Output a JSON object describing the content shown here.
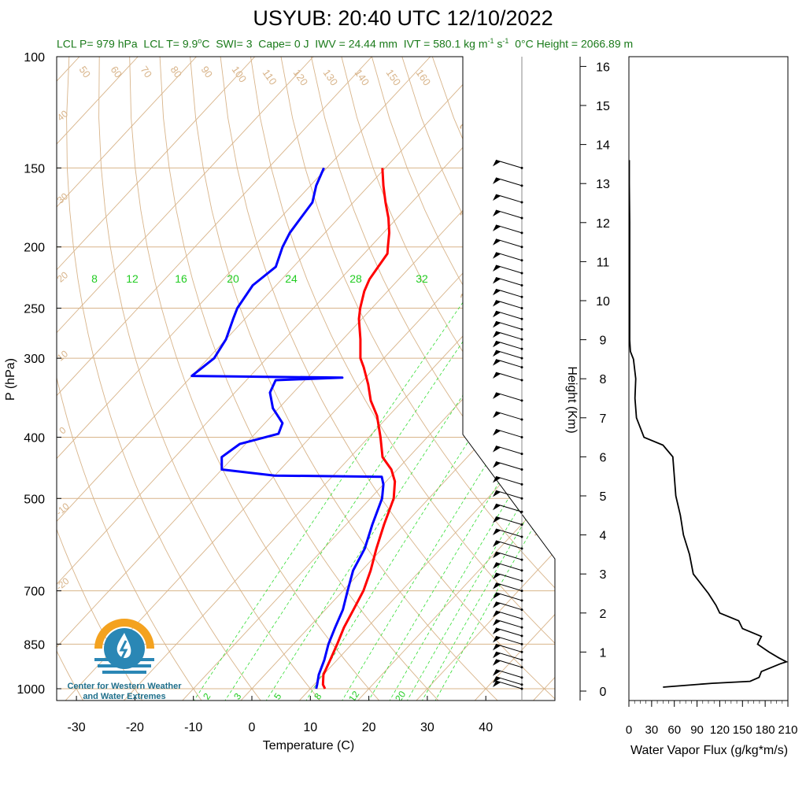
{
  "title": "USYUB: 20:40 UTC 12/10/2022",
  "stats": {
    "lcl_p": "LCL P= 979 hPa",
    "lcl_t": "LCL T= 9.9",
    "lcl_t_unit": "C",
    "swi": "SWI= 3",
    "cape": "Cape= 0 J",
    "iwv": "IWV = 24.44 mm",
    "ivt": "IVT = 580.1 kg m",
    "ivt_exp1": "-1",
    "ivt_s": " s",
    "ivt_exp2": "-1",
    "freezing_height": "0°C Height = 2066.89 m"
  },
  "logo": {
    "line1": "Center for Western Weather",
    "line2": "and Water Extremes"
  },
  "colors": {
    "temperature": "#ff0000",
    "dewpoint": "#0000ff",
    "dry_adiabat": "#d8b48a",
    "isotherm": "#d8b48a",
    "mixing_ratio": "#33dd33",
    "flux": "#000000",
    "stats_text": "#1a7a1a"
  },
  "chart_data": [
    {
      "type": "line",
      "name": "skew-t",
      "xlabel": "Temperature (C)",
      "ylabel": "P (hPa)",
      "xlim": [
        -35,
        50
      ],
      "ylim": [
        1050,
        100
      ],
      "yscale": "log",
      "x_ticks": [
        "-30",
        "-20",
        "-10",
        "0",
        "10",
        "20",
        "30",
        "40"
      ],
      "p_ticks": [
        "100",
        "150",
        "200",
        "250",
        "300",
        "400",
        "500",
        "700",
        "850",
        "1000"
      ],
      "dry_adiabat_labels": [
        "50",
        "60",
        "70",
        "80",
        "90",
        "100",
        "110",
        "120",
        "130",
        "140",
        "150",
        "160"
      ],
      "isotherm_labels": [
        "40",
        "30",
        "20",
        "10",
        "0",
        "-10",
        "-20",
        "30",
        "20",
        "10",
        "0",
        "-10",
        "-20",
        "-30"
      ],
      "mixing_ratio_labels_top": [
        "8",
        "12",
        "16",
        "20",
        "24",
        "28",
        "32"
      ],
      "mixing_ratio_labels_bottom": [
        "2",
        "3",
        "5",
        "8",
        "12",
        "20"
      ],
      "temperature": [
        {
          "p": 1000,
          "t": 12.5
        },
        {
          "p": 985,
          "t": 11.5
        },
        {
          "p": 950,
          "t": 10.0
        },
        {
          "p": 900,
          "t": 8.8
        },
        {
          "p": 850,
          "t": 7.5
        },
        {
          "p": 800,
          "t": 6.0
        },
        {
          "p": 750,
          "t": 4.8
        },
        {
          "p": 700,
          "t": 3.5
        },
        {
          "p": 650,
          "t": 1.5
        },
        {
          "p": 600,
          "t": -1.0
        },
        {
          "p": 550,
          "t": -3.5
        },
        {
          "p": 500,
          "t": -6.0
        },
        {
          "p": 470,
          "t": -8.5
        },
        {
          "p": 450,
          "t": -11.0
        },
        {
          "p": 430,
          "t": -14.5
        },
        {
          "p": 400,
          "t": -18.0
        },
        {
          "p": 370,
          "t": -22.0
        },
        {
          "p": 350,
          "t": -25.5
        },
        {
          "p": 330,
          "t": -28.5
        },
        {
          "p": 310,
          "t": -32.0
        },
        {
          "p": 300,
          "t": -34.0
        },
        {
          "p": 280,
          "t": -37.0
        },
        {
          "p": 260,
          "t": -40.5
        },
        {
          "p": 250,
          "t": -42.0
        },
        {
          "p": 235,
          "t": -44.0
        },
        {
          "p": 225,
          "t": -45.0
        },
        {
          "p": 215,
          "t": -45.5
        },
        {
          "p": 205,
          "t": -46.0
        },
        {
          "p": 200,
          "t": -47.0
        },
        {
          "p": 190,
          "t": -49.0
        },
        {
          "p": 180,
          "t": -51.5
        },
        {
          "p": 170,
          "t": -54.5
        },
        {
          "p": 160,
          "t": -57.5
        },
        {
          "p": 150,
          "t": -60.5
        }
      ],
      "dewpoint": [
        {
          "p": 1000,
          "t": 11.0
        },
        {
          "p": 985,
          "t": 10.5
        },
        {
          "p": 950,
          "t": 9.2
        },
        {
          "p": 900,
          "t": 7.8
        },
        {
          "p": 850,
          "t": 6.0
        },
        {
          "p": 800,
          "t": 4.5
        },
        {
          "p": 750,
          "t": 3.0
        },
        {
          "p": 700,
          "t": 0.8
        },
        {
          "p": 650,
          "t": -1.5
        },
        {
          "p": 600,
          "t": -3.0
        },
        {
          "p": 550,
          "t": -5.5
        },
        {
          "p": 500,
          "t": -8.0
        },
        {
          "p": 475,
          "t": -10.0
        },
        {
          "p": 462,
          "t": -11.5
        },
        {
          "p": 460,
          "t": -30.0
        },
        {
          "p": 450,
          "t": -40.0
        },
        {
          "p": 430,
          "t": -42.0
        },
        {
          "p": 410,
          "t": -41.0
        },
        {
          "p": 395,
          "t": -36.0
        },
        {
          "p": 380,
          "t": -37.0
        },
        {
          "p": 360,
          "t": -41.0
        },
        {
          "p": 340,
          "t": -44.0
        },
        {
          "p": 325,
          "t": -45.0
        },
        {
          "p": 322,
          "t": -34.0
        },
        {
          "p": 320,
          "t": -60.0
        },
        {
          "p": 300,
          "t": -59.0
        },
        {
          "p": 280,
          "t": -60.0
        },
        {
          "p": 260,
          "t": -62.0
        },
        {
          "p": 250,
          "t": -63.0
        },
        {
          "p": 230,
          "t": -64.0
        },
        {
          "p": 215,
          "t": -63.0
        },
        {
          "p": 200,
          "t": -65.0
        },
        {
          "p": 190,
          "t": -66.0
        },
        {
          "p": 180,
          "t": -66.5
        },
        {
          "p": 170,
          "t": -67.0
        },
        {
          "p": 160,
          "t": -69.0
        },
        {
          "p": 150,
          "t": -70.5
        }
      ]
    },
    {
      "type": "line",
      "name": "water-vapor-flux",
      "xlabel": "Water Vapor Flux (g/kg*m/s)",
      "ylabel": "Height (Km)",
      "xlim": [
        0,
        210
      ],
      "ylim": [
        -0.3,
        16.5
      ],
      "x_ticks": [
        "0",
        "30",
        "60",
        "90",
        "120",
        "150",
        "180",
        "210"
      ],
      "y_ticks": [
        "0",
        "1",
        "2",
        "3",
        "4",
        "5",
        "6",
        "7",
        "8",
        "9",
        "10",
        "11",
        "12",
        "13",
        "14",
        "15",
        "16"
      ],
      "flux": [
        {
          "h": 0.1,
          "v": 45
        },
        {
          "h": 0.2,
          "v": 110
        },
        {
          "h": 0.25,
          "v": 160
        },
        {
          "h": 0.35,
          "v": 172
        },
        {
          "h": 0.5,
          "v": 175
        },
        {
          "h": 0.7,
          "v": 200
        },
        {
          "h": 0.75,
          "v": 208
        },
        {
          "h": 0.85,
          "v": 198
        },
        {
          "h": 1.0,
          "v": 185
        },
        {
          "h": 1.2,
          "v": 170
        },
        {
          "h": 1.4,
          "v": 175
        },
        {
          "h": 1.6,
          "v": 150
        },
        {
          "h": 1.8,
          "v": 145
        },
        {
          "h": 2.0,
          "v": 120
        },
        {
          "h": 2.2,
          "v": 115
        },
        {
          "h": 2.5,
          "v": 105
        },
        {
          "h": 3.0,
          "v": 85
        },
        {
          "h": 3.5,
          "v": 80
        },
        {
          "h": 4.0,
          "v": 72
        },
        {
          "h": 4.5,
          "v": 68
        },
        {
          "h": 5.0,
          "v": 62
        },
        {
          "h": 5.5,
          "v": 60
        },
        {
          "h": 6.0,
          "v": 58
        },
        {
          "h": 6.3,
          "v": 45
        },
        {
          "h": 6.5,
          "v": 20
        },
        {
          "h": 7.0,
          "v": 10
        },
        {
          "h": 7.5,
          "v": 8
        },
        {
          "h": 8.0,
          "v": 9
        },
        {
          "h": 8.5,
          "v": 6
        },
        {
          "h": 8.7,
          "v": 2
        },
        {
          "h": 9.0,
          "v": 1
        },
        {
          "h": 10.0,
          "v": 1
        },
        {
          "h": 11.0,
          "v": 1
        },
        {
          "h": 12.0,
          "v": 1
        },
        {
          "h": 13.0,
          "v": 0.5
        },
        {
          "h": 13.6,
          "v": 0.5
        }
      ]
    }
  ]
}
